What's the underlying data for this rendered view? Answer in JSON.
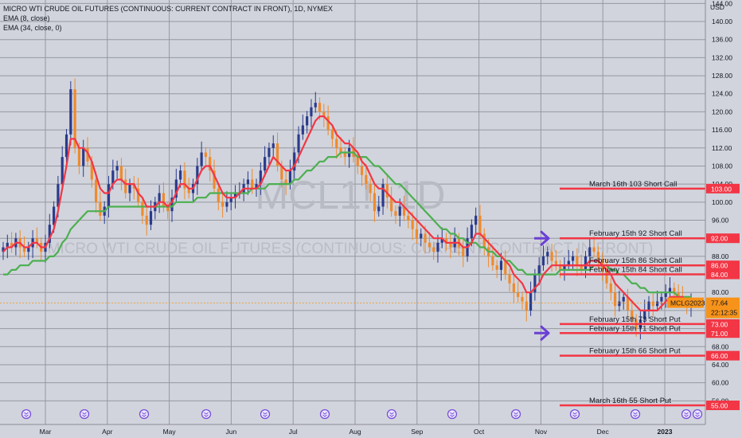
{
  "header": {
    "title": "MICRO WTI CRUDE OIL FUTURES (CONTINUOUS: CURRENT CONTRACT IN FRONT), 1D, NYMEX",
    "indicators": [
      "EMA (8, close)",
      "EMA (34, close, 0)"
    ]
  },
  "watermark": {
    "symbol": "MCL1!, 1D",
    "description": "MICRO WTI CRUDE OIL FUTURES (CONTINUOUS: CURRENT CONTRACT IN FRONT)"
  },
  "colors": {
    "background": "#d1d4dc",
    "grid": "#9598a1",
    "up_candle": "#2a3a8c",
    "down_candle": "#ef8a2c",
    "ema_fast": "#f23645",
    "ema_slow": "#4caf50",
    "level_line": "#f23645",
    "arrow": "#6b3fd4",
    "price_label": "#f7931a"
  },
  "chart_data": {
    "type": "candlestick",
    "y_axis_unit": "USD",
    "ylim": [
      52,
      146
    ],
    "y_ticks": [
      56,
      60,
      64,
      68,
      72,
      76,
      80,
      84,
      88,
      92,
      96,
      100,
      104,
      108,
      112,
      116,
      120,
      124,
      128,
      132,
      136,
      140,
      144
    ],
    "y_tick_labels": [
      "56.00",
      "60.00",
      "64.00",
      "68.00",
      "72.00",
      "76.00",
      "80.00",
      "84.00",
      "88.00",
      "92.00",
      "96.00",
      "100.00",
      "104.00",
      "108.00",
      "112.00",
      "116.00",
      "120.00",
      "124.00",
      "128.00",
      "132.00",
      "136.00",
      "140.00",
      "144.00"
    ],
    "x_months": [
      "Mar",
      "Apr",
      "May",
      "Jun",
      "Jul",
      "Aug",
      "Sep",
      "Oct",
      "Nov",
      "Dec",
      "2023"
    ],
    "close_series_approx": [
      90,
      91,
      90,
      92,
      90,
      89,
      90,
      92,
      91,
      89,
      91,
      95,
      99,
      104,
      110,
      115,
      125,
      112,
      108,
      112,
      109,
      105,
      100,
      97,
      99,
      104,
      107,
      108,
      105,
      102,
      104,
      103,
      100,
      97,
      95,
      98,
      100,
      102,
      99,
      98,
      101,
      105,
      107,
      103,
      102,
      104,
      108,
      111,
      110,
      107,
      103,
      100,
      99,
      100,
      101,
      102,
      102,
      104,
      105,
      103,
      104,
      107,
      110,
      112,
      113,
      108,
      105,
      104,
      107,
      111,
      115,
      117,
      119,
      121,
      122,
      120,
      119,
      116,
      114,
      112,
      111,
      110,
      112,
      110,
      108,
      106,
      104,
      102,
      98,
      99,
      104,
      101,
      98,
      97,
      99,
      97,
      96,
      94,
      92,
      93,
      91,
      90,
      89,
      91,
      92,
      91,
      90,
      92,
      90,
      88,
      92,
      95,
      97,
      93,
      90,
      88,
      86,
      85,
      87,
      84,
      82,
      80,
      79,
      78,
      76,
      80,
      84,
      86,
      88,
      89,
      87,
      86,
      85,
      86,
      87,
      88,
      86,
      85,
      88,
      90,
      89,
      87,
      85,
      82,
      80,
      77,
      78,
      79,
      76,
      74,
      72,
      74,
      76,
      78,
      77,
      78,
      79,
      80,
      81,
      80,
      79,
      78,
      77,
      78
    ],
    "ema8_approx": [
      89,
      90,
      90,
      91,
      91,
      90,
      90,
      91,
      91,
      90,
      90,
      92,
      94,
      98,
      103,
      108,
      114,
      114,
      112,
      112,
      111,
      109,
      106,
      103,
      102,
      102,
      104,
      105,
      105,
      104,
      104,
      104,
      102,
      101,
      99,
      99,
      99,
      100,
      100,
      99,
      100,
      102,
      104,
      104,
      103,
      103,
      105,
      107,
      108,
      108,
      106,
      104,
      102,
      101,
      101,
      101,
      102,
      103,
      103,
      103,
      103,
      104,
      106,
      108,
      110,
      109,
      108,
      107,
      107,
      108,
      110,
      112,
      114,
      116,
      118,
      119,
      119,
      118,
      117,
      115,
      114,
      113,
      113,
      112,
      111,
      109,
      108,
      106,
      104,
      103,
      103,
      102,
      101,
      100,
      100,
      99,
      98,
      97,
      96,
      95,
      94,
      93,
      92,
      92,
      92,
      91,
      91,
      91,
      91,
      90,
      90,
      91,
      93,
      93,
      92,
      91,
      90,
      89,
      88,
      87,
      86,
      84,
      83,
      82,
      80,
      80,
      81,
      82,
      84,
      85,
      86,
      86,
      86,
      86,
      86,
      86,
      86,
      86,
      86,
      87,
      87,
      87,
      86,
      85,
      84,
      82,
      81,
      80,
      79,
      78,
      77,
      76,
      76,
      76,
      76,
      76,
      77,
      78,
      79,
      79,
      79,
      79,
      78,
      78
    ],
    "ema34_approx": [
      84,
      84,
      85,
      85,
      86,
      86,
      86,
      87,
      87,
      87,
      87,
      88,
      88,
      89,
      91,
      92,
      94,
      95,
      96,
      97,
      98,
      98,
      98,
      98,
      98,
      99,
      99,
      99,
      99,
      99,
      99,
      99,
      99,
      99,
      99,
      99,
      99,
      99,
      99,
      99,
      99,
      100,
      100,
      100,
      100,
      100,
      101,
      101,
      101,
      102,
      102,
      102,
      102,
      102,
      102,
      102,
      102,
      102,
      102,
      103,
      103,
      103,
      103,
      104,
      104,
      104,
      104,
      104,
      104,
      105,
      105,
      106,
      107,
      107,
      108,
      109,
      109,
      110,
      110,
      110,
      111,
      111,
      111,
      111,
      110,
      110,
      110,
      109,
      108,
      108,
      107,
      106,
      105,
      104,
      104,
      103,
      102,
      101,
      100,
      99,
      98,
      97,
      96,
      95,
      94,
      94,
      93,
      93,
      92,
      92,
      91,
      91,
      91,
      90,
      90,
      89,
      89,
      88,
      88,
      87,
      87,
      86,
      85,
      85,
      84,
      84,
      84,
      84,
      84,
      84,
      84,
      84,
      85,
      85,
      85,
      85,
      85,
      85,
      85,
      85,
      86,
      86,
      86,
      86,
      85,
      85,
      84,
      84,
      83,
      82,
      82,
      81,
      81,
      80,
      80,
      80,
      80,
      80,
      80,
      80,
      79,
      79,
      79,
      79
    ],
    "levels": [
      {
        "label": "March 16th 103 Short Call",
        "price": 103,
        "tag": "103.00"
      },
      {
        "label": "February 15th 92 Short Call",
        "price": 92,
        "tag": "92.00"
      },
      {
        "label": "February 15th 86 Short Call",
        "price": 86,
        "tag": "86.00"
      },
      {
        "label": "February 15th 84 Short Call",
        "price": 84,
        "tag": "84.00"
      },
      {
        "label": "February 15th 73 Short Put",
        "price": 73,
        "tag": "73.00"
      },
      {
        "label": "February 15th 71 Short Put",
        "price": 71,
        "tag": "71.00"
      },
      {
        "label": "February 15th 66 Short Put",
        "price": 66,
        "tag": "66.00"
      },
      {
        "label": "March 16th 55 Short Put",
        "price": 55,
        "tag": "55.00"
      }
    ],
    "current_price": {
      "value": 77.64,
      "label": "77.64",
      "timer": "22:12:35",
      "contract": "MCLG2023"
    },
    "arrow_prices": [
      92,
      71
    ]
  }
}
